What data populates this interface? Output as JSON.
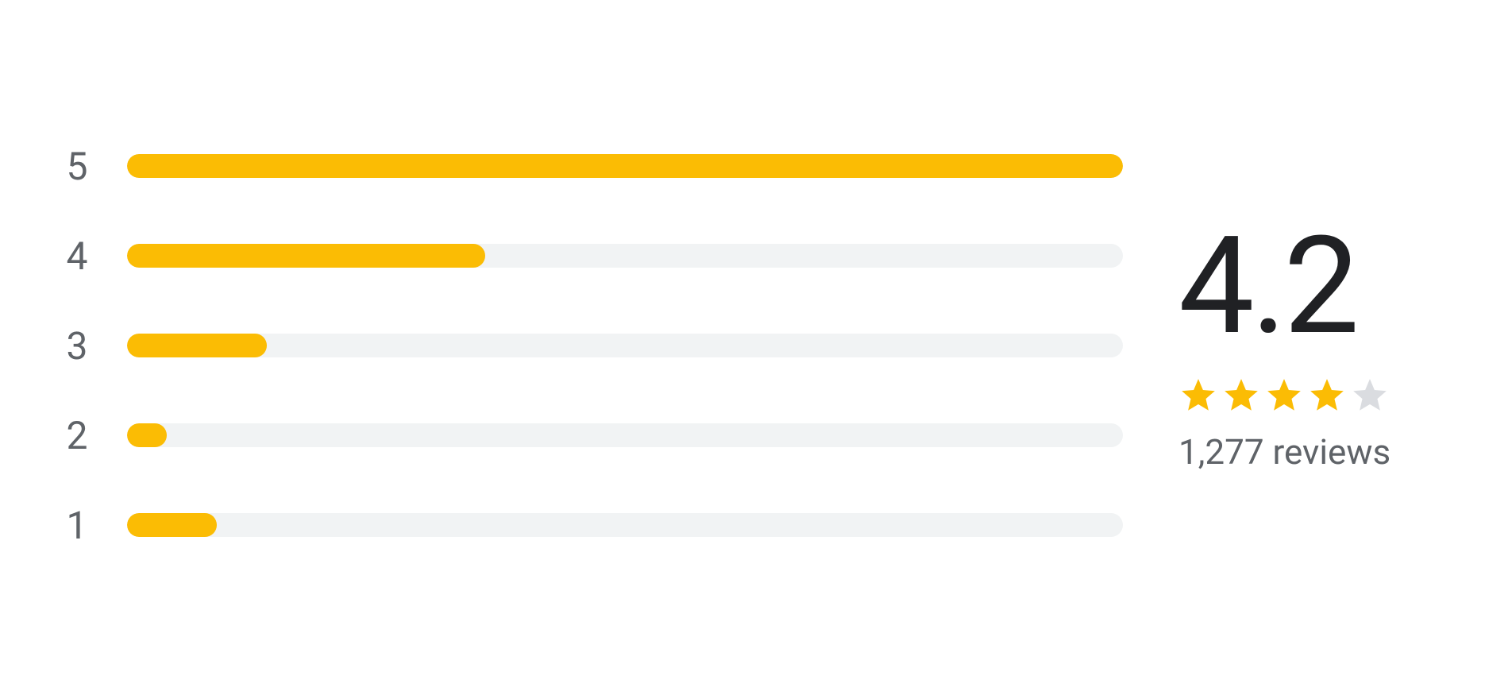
{
  "rating_widget": {
    "bar_color": "#fbbc04",
    "track_color": "#f1f3f4",
    "bars": [
      {
        "label": "5",
        "fill_pct": 100
      },
      {
        "label": "4",
        "fill_pct": 36
      },
      {
        "label": "3",
        "fill_pct": 14
      },
      {
        "label": "2",
        "fill_pct": 4
      },
      {
        "label": "1",
        "fill_pct": 9
      }
    ],
    "average": "4.2",
    "star_full_color": "#fbbc04",
    "star_empty_color": "#dadce0",
    "stars": [
      1,
      1,
      1,
      1,
      0
    ],
    "reviews_text": "1,277 reviews"
  }
}
